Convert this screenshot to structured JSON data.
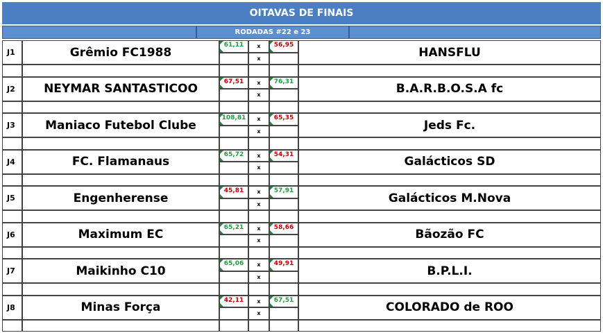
{
  "header": {
    "title": "OITAVAS DE FINAIS",
    "subtitle": "RODADAS #22 e 23"
  },
  "matches": [
    {
      "id": "J1",
      "home": "Grêmio FC1988",
      "home_score": "61,11",
      "separator": [
        "x",
        "x"
      ],
      "away_score": "56,95",
      "away": "HANSFLU",
      "home_color": "#1f9a3e",
      "away_color": "#c00000"
    },
    {
      "id": "J2",
      "home": "NEYMAR SANTASTICOO",
      "home_score": "67,51",
      "separator": [
        "x",
        "x"
      ],
      "away_score": "76,31",
      "away": "B.A.R.B.O.S.A fc",
      "home_color": "#c00000",
      "away_color": "#1f9a3e"
    },
    {
      "id": "J3",
      "home": "Maniaco Futebol Clube",
      "home_score": "108,81",
      "separator": [
        "x",
        "x"
      ],
      "away_score": "65,35",
      "away": "Jeds Fc.",
      "home_color": "#1f9a3e",
      "away_color": "#c00000"
    },
    {
      "id": "J4",
      "home": "FC. Flamanaus",
      "home_score": "65,72",
      "separator": [
        "x",
        "x"
      ],
      "away_score": "54,31",
      "away": "Galácticos SD",
      "home_color": "#1f9a3e",
      "away_color": "#c00000"
    },
    {
      "id": "J5",
      "home": "Engenherense",
      "home_score": "45,81",
      "separator": [
        "x",
        "x"
      ],
      "away_score": "57,91",
      "away": "Galácticos M.Nova",
      "home_color": "#c00000",
      "away_color": "#1f9a3e"
    },
    {
      "id": "J6",
      "home": "Maximum EC",
      "home_score": "65,21",
      "separator": [
        "x",
        "x"
      ],
      "away_score": "58,66",
      "away": "Bãozão FC",
      "home_color": "#1f9a3e",
      "away_color": "#c00000"
    },
    {
      "id": "J7",
      "home": "Maikinho C10",
      "home_score": "65,06",
      "separator": [
        "x",
        "x"
      ],
      "away_score": "49,91",
      "away": "B.P.L.I.",
      "home_color": "#1f9a3e",
      "away_color": "#c00000"
    },
    {
      "id": "J8",
      "home": "Minas Força",
      "home_score": "42,11",
      "separator": [
        "x",
        "x"
      ],
      "away_score": "67,51",
      "away": "COLORADO de ROO",
      "home_color": "#c00000",
      "away_color": "#1f9a3e"
    }
  ]
}
